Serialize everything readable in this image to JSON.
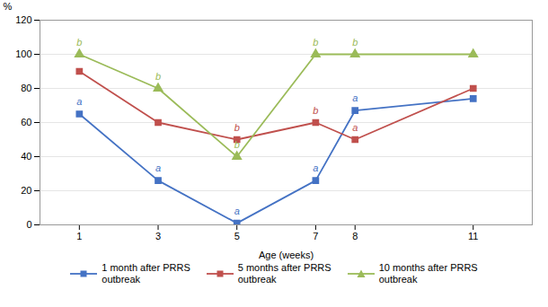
{
  "chart_data": {
    "type": "line",
    "x": [
      1,
      3,
      5,
      7,
      8,
      11
    ],
    "xlabel": "Age (weeks)",
    "ylabel": "%",
    "xlim": [
      0,
      12.5
    ],
    "xticks": [
      1,
      3,
      5,
      7,
      8,
      11
    ],
    "ylim": [
      0,
      120
    ],
    "yticks": [
      0,
      20,
      40,
      60,
      80,
      100,
      120
    ],
    "grid": true,
    "legend": "bottom",
    "series": [
      {
        "name": "1 month after PRRS\noutbreak",
        "color": "#4472C4",
        "marker": "square",
        "values": [
          65,
          26,
          1,
          26,
          67,
          74
        ]
      },
      {
        "name": "5 months after PRRS\noutbreak",
        "color": "#C0504D",
        "marker": "square",
        "values": [
          90,
          60,
          50,
          60,
          50,
          80
        ]
      },
      {
        "name": "10 months after PRRS\noutbreak",
        "color": "#9BBB59",
        "marker": "triangle",
        "values": [
          100,
          80,
          40,
          100,
          100,
          100
        ]
      }
    ],
    "annotations": [
      {
        "series": "1 month after PRRS\noutbreak",
        "x": 1,
        "y": 65,
        "text": "a"
      },
      {
        "series": "1 month after PRRS\noutbreak",
        "x": 3,
        "y": 26,
        "text": "a"
      },
      {
        "series": "1 month after PRRS\noutbreak",
        "x": 5,
        "y": 1,
        "text": "a"
      },
      {
        "series": "1 month after PRRS\noutbreak",
        "x": 7,
        "y": 26,
        "text": "a"
      },
      {
        "series": "1 month after PRRS\noutbreak",
        "x": 8,
        "y": 67,
        "text": "a"
      },
      {
        "series": "5 months after PRRS\noutbreak",
        "x": 5,
        "y": 50,
        "text": "b"
      },
      {
        "series": "5 months after PRRS\noutbreak",
        "x": 7,
        "y": 60,
        "text": "b"
      },
      {
        "series": "5 months after PRRS\noutbreak",
        "x": 8,
        "y": 50,
        "text": "a"
      },
      {
        "series": "10 months after PRRS\noutbreak",
        "x": 1,
        "y": 100,
        "text": "b"
      },
      {
        "series": "10 months after PRRS\noutbreak",
        "x": 3,
        "y": 80,
        "text": "b"
      },
      {
        "series": "10 months after PRRS\noutbreak",
        "x": 5,
        "y": 40,
        "text": "b"
      },
      {
        "series": "10 months after PRRS\noutbreak",
        "x": 7,
        "y": 100,
        "text": "b"
      },
      {
        "series": "10 months after PRRS\noutbreak",
        "x": 8,
        "y": 100,
        "text": "b"
      }
    ]
  }
}
